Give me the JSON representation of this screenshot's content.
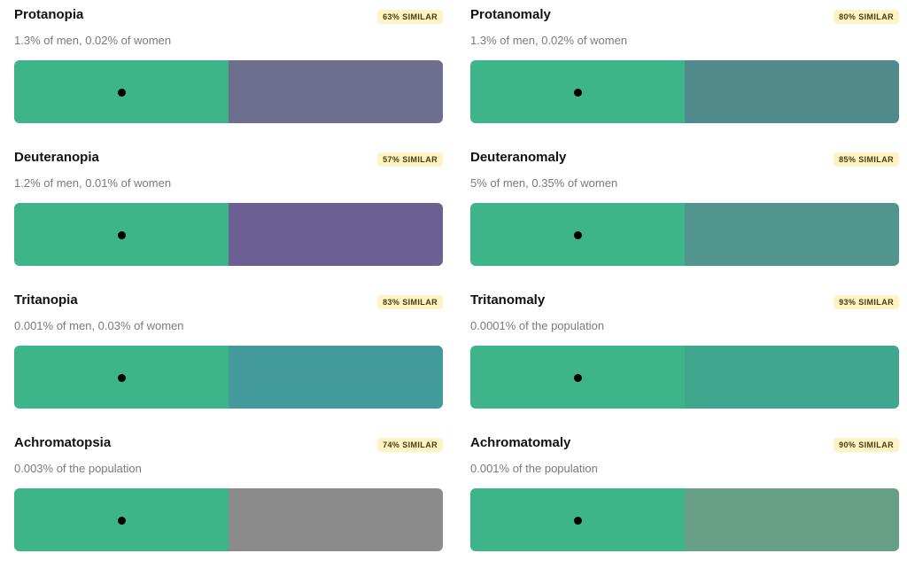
{
  "original_color": "#3eb489",
  "cards": [
    {
      "title": "Protanopia",
      "subtitle": "1.3% of men, 0.02% of women",
      "badge": "63% SIMILAR",
      "simulated_color": "#6e6e8e"
    },
    {
      "title": "Protanomaly",
      "subtitle": "1.3% of men, 0.02% of women",
      "badge": "80% SIMILAR",
      "simulated_color": "#508a8a"
    },
    {
      "title": "Deuteranopia",
      "subtitle": "1.2% of men, 0.01% of women",
      "badge": "57% SIMILAR",
      "simulated_color": "#6a6094"
    },
    {
      "title": "Deuteranomaly",
      "subtitle": "5% of men, 0.35% of women",
      "badge": "85% SIMILAR",
      "simulated_color": "#52958c"
    },
    {
      "title": "Tritanopia",
      "subtitle": "0.001% of men, 0.03% of women",
      "badge": "83% SIMILAR",
      "simulated_color": "#429a9b"
    },
    {
      "title": "Tritanomaly",
      "subtitle": "0.0001% of the population",
      "badge": "93% SIMILAR",
      "simulated_color": "#40a78f"
    },
    {
      "title": "Achromatopsia",
      "subtitle": "0.003% of the population",
      "badge": "74% SIMILAR",
      "simulated_color": "#8b8b8b"
    },
    {
      "title": "Achromatomaly",
      "subtitle": "0.001% of the population",
      "badge": "90% SIMILAR",
      "simulated_color": "#67a086"
    }
  ]
}
